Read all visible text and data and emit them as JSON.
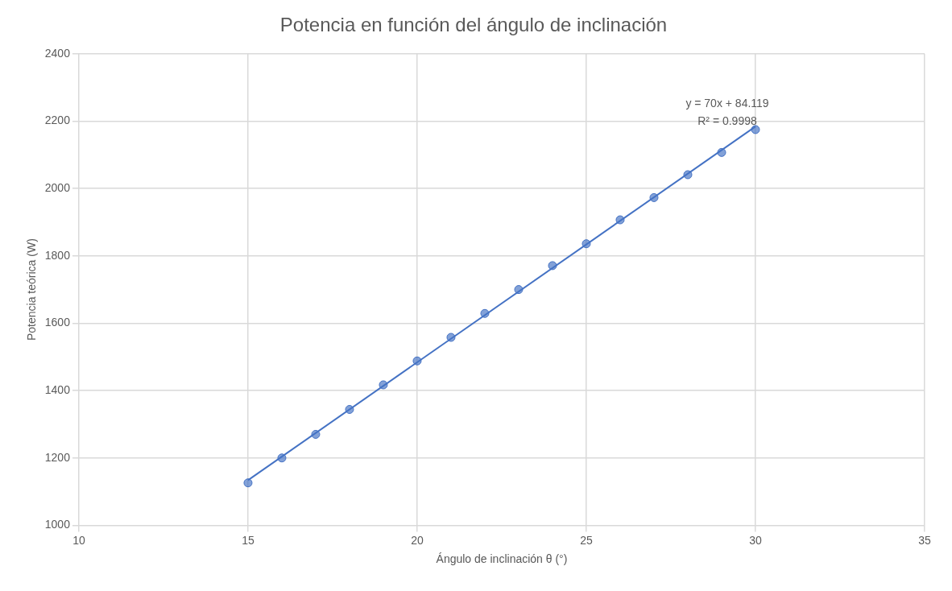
{
  "chart_data": {
    "type": "scatter",
    "title": "Potencia en función del ángulo de inclinación",
    "xlabel": "Ángulo de inclinación θ (°)",
    "ylabel": "Potencia teórica (W)",
    "x": [
      15,
      16,
      17,
      18,
      19,
      20,
      21,
      22,
      23,
      24,
      25,
      26,
      27,
      28,
      29,
      30
    ],
    "series": [
      {
        "type": "scatter",
        "color": "#4472c4",
        "marker": "circle",
        "values": [
          1126,
          1200,
          1270,
          1344,
          1417,
          1488,
          1558,
          1629,
          1700,
          1771,
          1836,
          1907,
          1973,
          2041,
          2107,
          2175
        ]
      },
      {
        "type": "line",
        "color": "#4472c4",
        "marker": "none",
        "x": [
          15,
          30
        ],
        "values": [
          1134,
          2184
        ]
      }
    ],
    "annotations": [
      "y = 70x + 84.119",
      "R² = 0.9998"
    ],
    "xlim": [
      10,
      35
    ],
    "xticks": [
      10,
      15,
      20,
      25,
      30,
      35
    ],
    "ylim": [
      1000,
      2400
    ],
    "yticks": [
      1000,
      1200,
      1400,
      1600,
      1800,
      2000,
      2200,
      2400
    ],
    "grid": true,
    "legend": false
  }
}
